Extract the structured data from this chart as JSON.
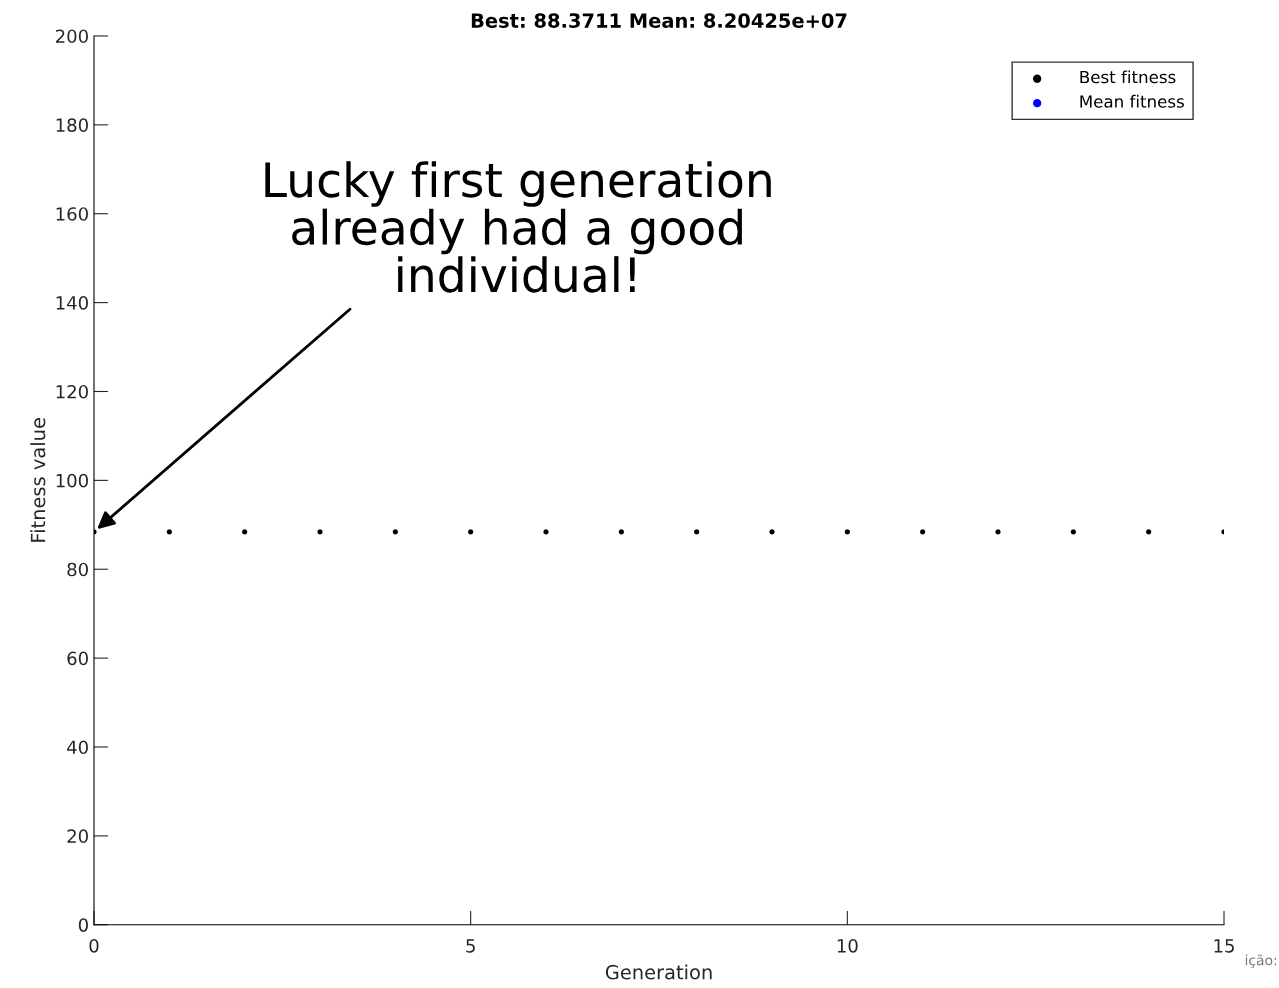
{
  "chart_data": {
    "type": "scatter",
    "title": "Best: 88.3711 Mean: 8.20425e+07",
    "xlabel": "Generation",
    "ylabel": "Fitness value",
    "x": [
      0,
      1,
      2,
      3,
      4,
      5,
      6,
      7,
      8,
      9,
      10,
      11,
      12,
      13,
      14,
      15
    ],
    "series": [
      {
        "name": "Best fitness",
        "color": "#000000",
        "values": [
          88.4,
          88.4,
          88.4,
          88.4,
          88.4,
          88.4,
          88.4,
          88.4,
          88.4,
          88.4,
          88.4,
          88.4,
          88.4,
          88.4,
          88.4,
          88.4
        ]
      },
      {
        "name": "Mean fitness",
        "color": "#0000ff",
        "values": [
          null,
          null,
          null,
          null,
          null,
          null,
          null,
          null,
          null,
          null,
          null,
          null,
          null,
          null,
          null,
          null
        ]
      }
    ],
    "xlim": [
      0,
      15
    ],
    "xticks": [
      0,
      5,
      10,
      15
    ],
    "ylim": [
      0,
      200
    ],
    "yticks": [
      0,
      20,
      40,
      60,
      80,
      100,
      120,
      140,
      160,
      180,
      200
    ],
    "grid": false,
    "legend": "top right",
    "marker": "circle",
    "annotations": [
      {
        "text": "Lucky first generation\nalready had a good\nindividual!",
        "x": 0,
        "y": 88.4
      },
      "ição:"
    ]
  }
}
